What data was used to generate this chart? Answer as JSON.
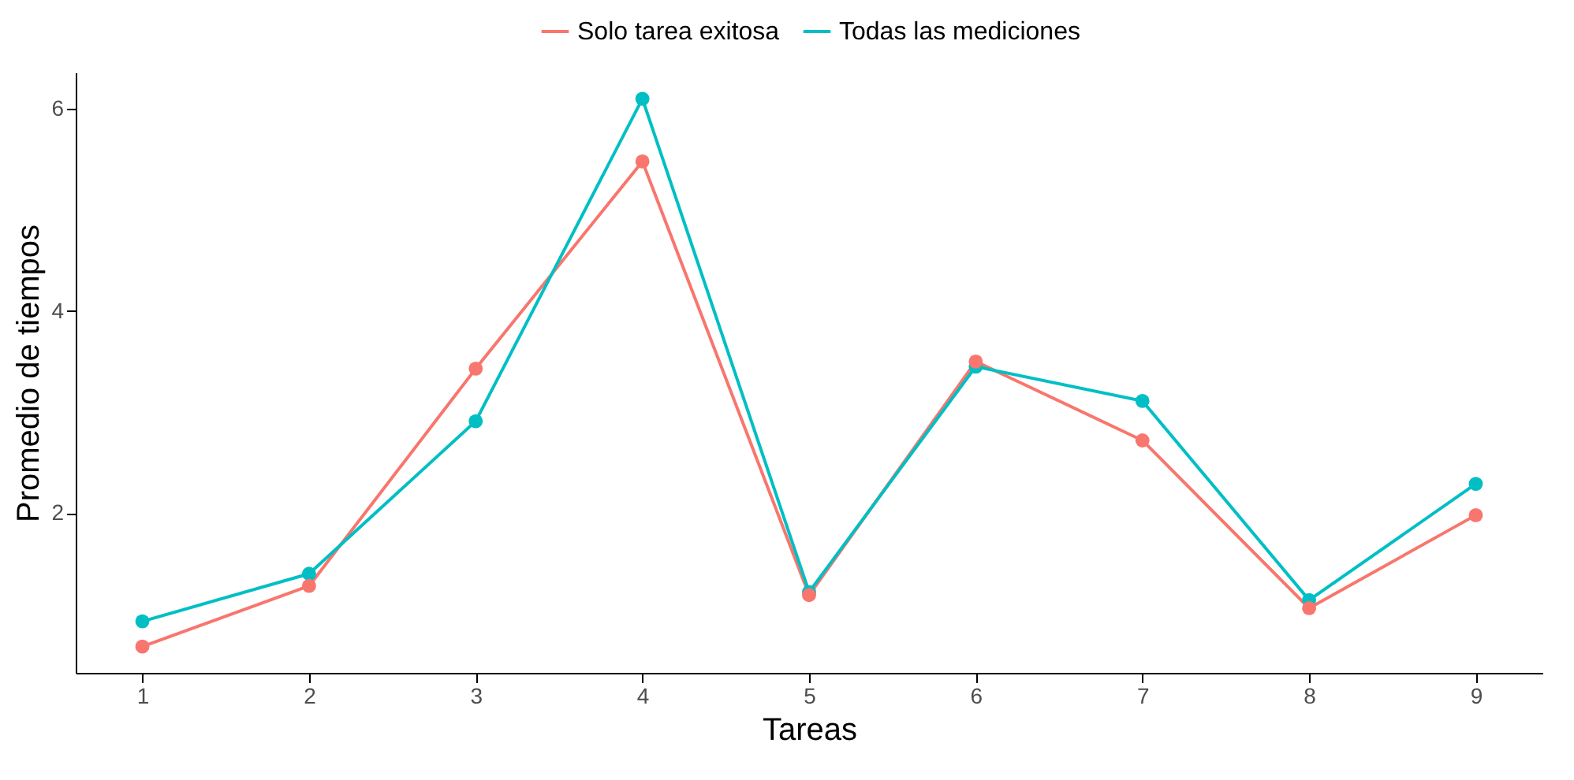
{
  "chart_data": {
    "type": "line",
    "xlabel": "Tareas",
    "ylabel": "Promedio de tiempos",
    "categories": [
      "1",
      "2",
      "3",
      "4",
      "5",
      "6",
      "7",
      "8",
      "9"
    ],
    "series": [
      {
        "name": "Solo tarea exitosa",
        "color": "#f8766d",
        "values": [
          0.68,
          1.28,
          3.43,
          5.48,
          1.19,
          3.5,
          2.72,
          1.06,
          1.98
        ]
      },
      {
        "name": "Todas las mediciones",
        "color": "#00bfc4",
        "values": [
          0.93,
          1.4,
          2.91,
          6.1,
          1.22,
          3.45,
          3.11,
          1.14,
          2.29
        ]
      }
    ],
    "ylim": [
      0.42,
      6.36
    ],
    "yticks": [
      2,
      4,
      6
    ],
    "grid": false,
    "legend": "top",
    "marker": "circle",
    "line_style": "solid"
  }
}
